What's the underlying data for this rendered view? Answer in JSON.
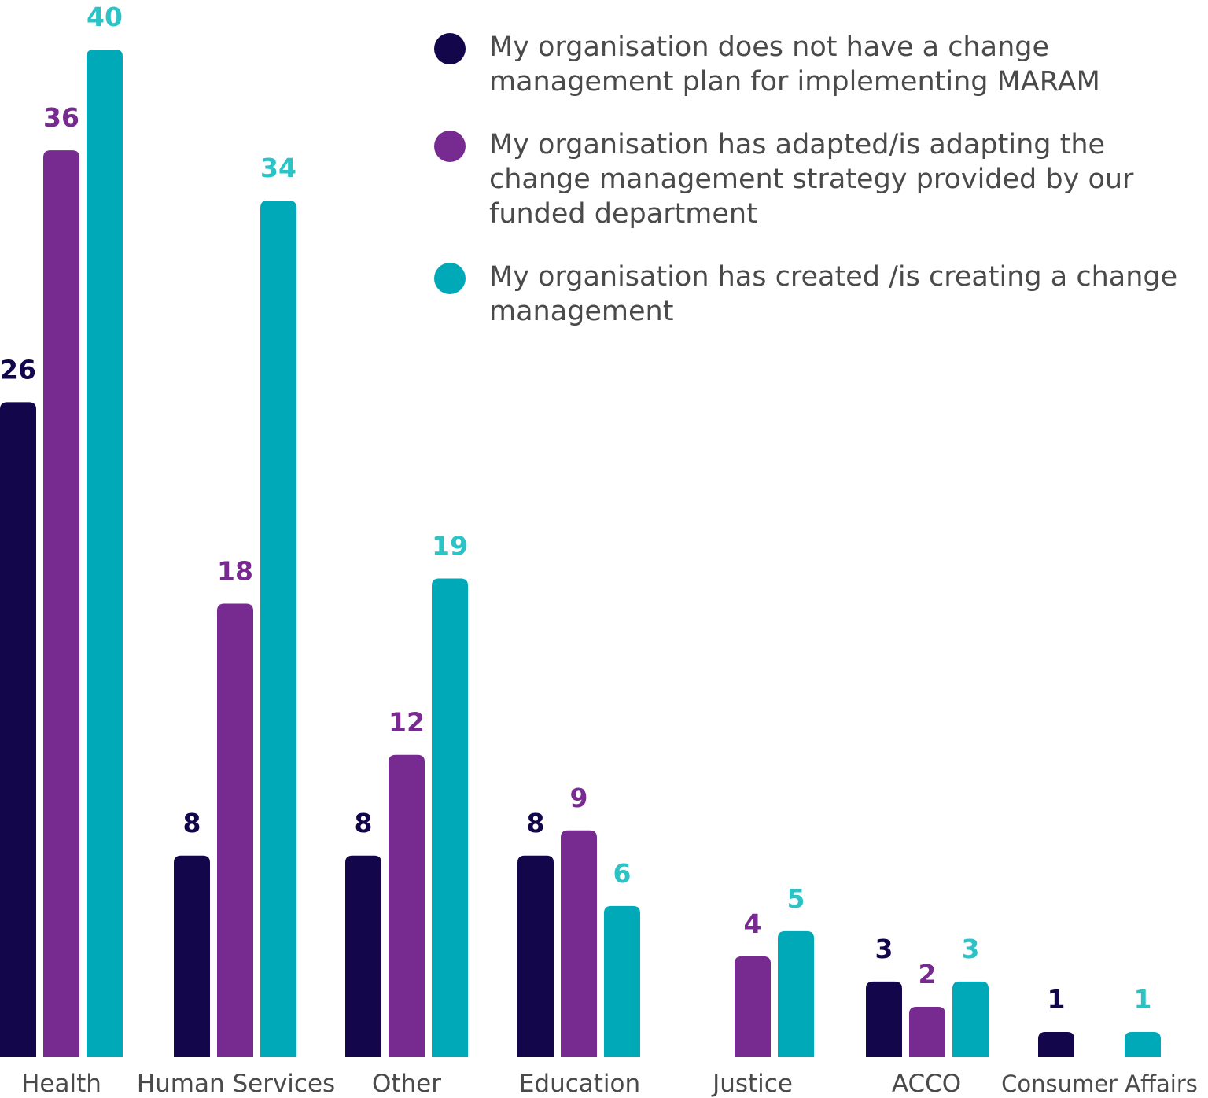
{
  "chart_data": {
    "type": "bar",
    "categories": [
      "Health",
      "Human Services",
      "Other",
      "Education",
      "Justice",
      "ACCO",
      "Consumer Affairs"
    ],
    "series": [
      {
        "name": "My organisation does not have a change management plan for implementing MARAM",
        "color": "#13064a",
        "values": [
          26,
          8,
          8,
          8,
          null,
          3,
          1
        ]
      },
      {
        "name": "My organisation has adapted/is adapting the change management strategy provided by our funded department",
        "color": "#772b90",
        "values": [
          36,
          18,
          12,
          9,
          4,
          2,
          null
        ]
      },
      {
        "name": "My organisation has created /is creating a change management",
        "color": "#00a9b8",
        "values": [
          40,
          34,
          19,
          6,
          5,
          3,
          1
        ]
      }
    ],
    "ylim": [
      0,
      41.5
    ],
    "grid": false,
    "legend_position": "top-right"
  }
}
